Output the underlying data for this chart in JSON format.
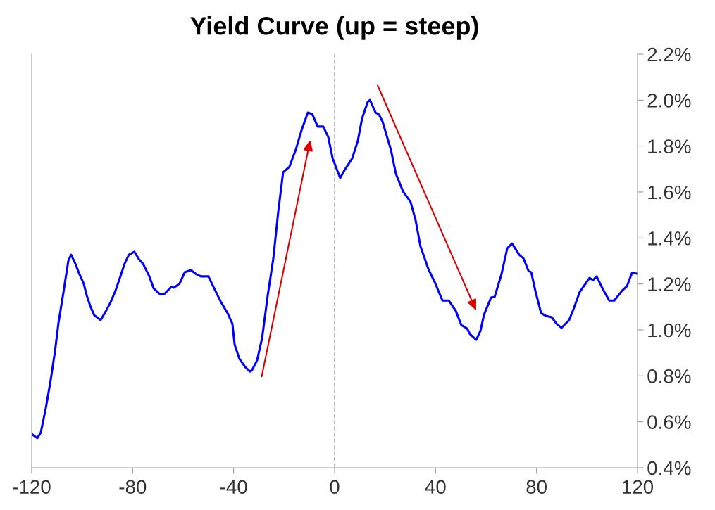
{
  "chart_data": {
    "type": "line",
    "title": "Yield Curve (up = steep)",
    "x": [
      -120,
      -117.8,
      -116.4,
      -114.4,
      -112.5,
      -110.8,
      -109.4,
      -107.4,
      -105.5,
      -104.4,
      -102.7,
      -101.3,
      -99.4,
      -98.2,
      -96.8,
      -95.2,
      -92.7,
      -90.7,
      -88.8,
      -86.8,
      -85.1,
      -83.2,
      -81.5,
      -79.3,
      -77.6,
      -75.9,
      -73.4,
      -71.7,
      -69.2,
      -67.5,
      -64.7,
      -63.6,
      -61.4,
      -59.4,
      -56.9,
      -54.7,
      -53.0,
      -50.0,
      -47.7,
      -45.2,
      -42.4,
      -40.5,
      -39.6,
      -37.7,
      -35.4,
      -33.5,
      -32.7,
      -30.7,
      -28.7,
      -26.5,
      -24.3,
      -22.3,
      -20.4,
      -17.9,
      -15.3,
      -13.1,
      -10.6,
      -8.9,
      -6.7,
      -4.5,
      -2.5,
      -0.8,
      2.2,
      4.2,
      7.0,
      9.2,
      10.9,
      13.1,
      14.0,
      16.2,
      17.6,
      19.0,
      22.3,
      24.3,
      27.1,
      30.1,
      32.1,
      34.0,
      37.1,
      39.9,
      42.7,
      45.2,
      48.0,
      50.2,
      52.5,
      53.6,
      56.1,
      57.8,
      59.2,
      62.0,
      63.4,
      66.1,
      68.4,
      70.3,
      73.1,
      74.8,
      76.8,
      77.9,
      79.5,
      81.8,
      83.7,
      86.0,
      87.9,
      89.9,
      92.9,
      94.9,
      97.1,
      101.0,
      102.4,
      103.8,
      106.1,
      108.8,
      110.8,
      113.9,
      115.8,
      117.8,
      120
    ],
    "series": [
      {
        "color": "#0000ff",
        "values": [
          0.547,
          0.529,
          0.553,
          0.66,
          0.78,
          0.905,
          1.03,
          1.165,
          1.3,
          1.327,
          1.288,
          1.248,
          1.202,
          1.15,
          1.104,
          1.064,
          1.043,
          1.08,
          1.119,
          1.171,
          1.226,
          1.288,
          1.327,
          1.34,
          1.309,
          1.288,
          1.233,
          1.181,
          1.156,
          1.156,
          1.187,
          1.184,
          1.202,
          1.251,
          1.26,
          1.242,
          1.233,
          1.233,
          1.181,
          1.125,
          1.073,
          1.027,
          0.936,
          0.874,
          0.838,
          0.819,
          0.825,
          0.868,
          0.966,
          1.15,
          1.309,
          1.517,
          1.686,
          1.71,
          1.787,
          1.869,
          1.946,
          1.94,
          1.885,
          1.885,
          1.839,
          1.747,
          1.661,
          1.7,
          1.747,
          1.823,
          1.921,
          1.992,
          2.001,
          1.946,
          1.937,
          1.906,
          1.784,
          1.679,
          1.603,
          1.557,
          1.477,
          1.364,
          1.266,
          1.202,
          1.128,
          1.128,
          1.083,
          1.021,
          1.006,
          0.982,
          0.957,
          0.997,
          1.067,
          1.141,
          1.144,
          1.242,
          1.355,
          1.376,
          1.327,
          1.312,
          1.257,
          1.251,
          1.171,
          1.073,
          1.061,
          1.055,
          1.027,
          1.009,
          1.043,
          1.098,
          1.165,
          1.226,
          1.217,
          1.233,
          1.181,
          1.128,
          1.128,
          1.171,
          1.19,
          1.248,
          1.245
        ]
      }
    ],
    "xlim": [
      -120,
      120
    ],
    "xticks": [
      -120,
      -80,
      -40,
      0,
      40,
      80,
      120
    ],
    "ylim": [
      0.4,
      2.2
    ],
    "yticks": [
      {
        "value": 0.4,
        "label": "0.4%"
      },
      {
        "value": 0.6,
        "label": "0.6%"
      },
      {
        "value": 0.8,
        "label": "0.8%"
      },
      {
        "value": 1.0,
        "label": "1.0%"
      },
      {
        "value": 1.2,
        "label": "1.2%"
      },
      {
        "value": 1.4,
        "label": "1.4%"
      },
      {
        "value": 1.6,
        "label": "1.6%"
      },
      {
        "value": 1.8,
        "label": "1.8%"
      },
      {
        "value": 2.0,
        "label": "2.0%"
      },
      {
        "value": 2.2,
        "label": "2.2%"
      }
    ],
    "ref_lines": [
      {
        "axis": "x",
        "value": 0,
        "color": "#b4b4b4",
        "line_style": "dashed"
      }
    ],
    "grid": false,
    "legend": false,
    "marker": "none",
    "line_style": "solid"
  }
}
